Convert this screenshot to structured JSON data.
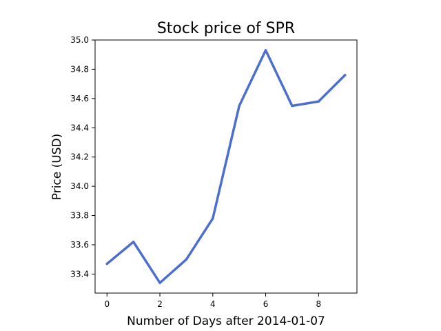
{
  "chart_data": {
    "type": "line",
    "title": "Stock price of SPR",
    "xlabel": "Number of Days after 2014-01-07",
    "ylabel": "Price (USD)",
    "x": [
      0,
      1,
      2,
      3,
      4,
      5,
      6,
      7,
      8,
      9
    ],
    "series": [
      {
        "values": [
          33.47,
          33.62,
          33.34,
          33.5,
          33.78,
          34.55,
          34.93,
          34.55,
          34.58,
          34.76
        ],
        "color": "#4c6fcf"
      }
    ],
    "xlim": [
      -0.45,
      9.45
    ],
    "ylim": [
      33.27,
      35.0
    ],
    "xticks": [
      0,
      2,
      4,
      6,
      8
    ],
    "xtick_labels": [
      "0",
      "2",
      "4",
      "6",
      "8"
    ],
    "yticks": [
      33.4,
      33.6,
      33.8,
      34.0,
      34.2,
      34.4,
      34.6,
      34.8,
      35.0
    ],
    "ytick_labels": [
      "33.4",
      "33.6",
      "33.8",
      "34.0",
      "34.2",
      "34.4",
      "34.6",
      "34.8",
      "35.0"
    ],
    "grid": false,
    "legend": "none"
  }
}
